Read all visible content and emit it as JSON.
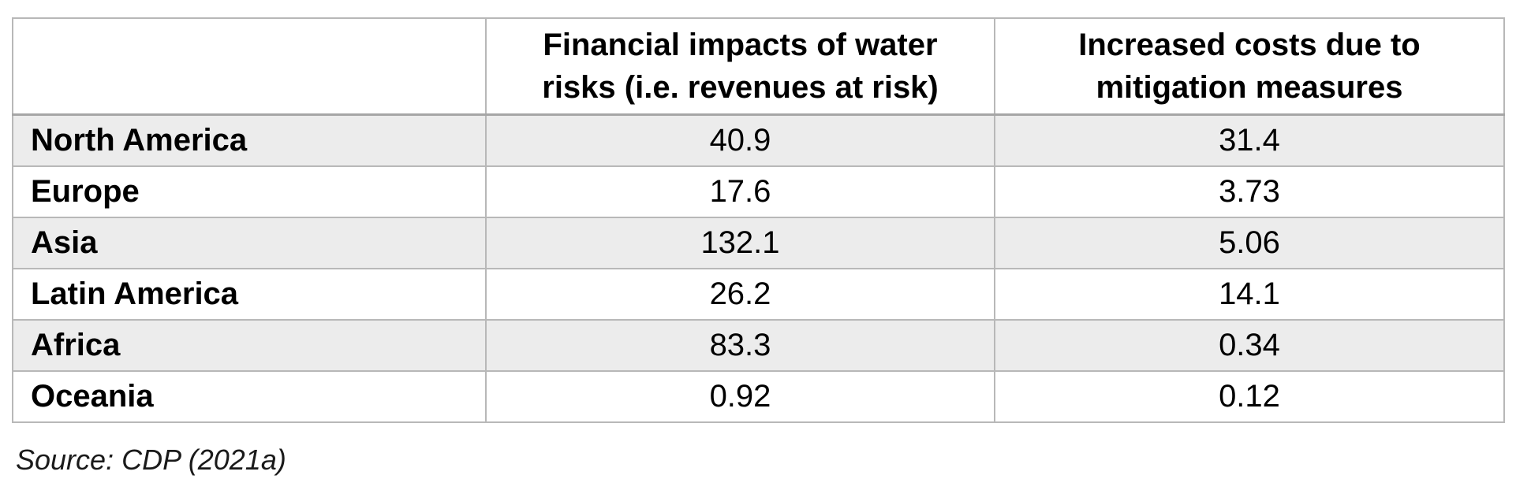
{
  "table": {
    "headers": [
      "",
      "Financial impacts of water risks (i.e. revenues at risk)",
      "Increased costs due to mitigation measures"
    ],
    "rows": [
      {
        "region": "North America",
        "financial_impact": "40.9",
        "mitigation_costs": "31.4"
      },
      {
        "region": "Europe",
        "financial_impact": "17.6",
        "mitigation_costs": "3.73"
      },
      {
        "region": "Asia",
        "financial_impact": "132.1",
        "mitigation_costs": "5.06"
      },
      {
        "region": "Latin America",
        "financial_impact": "26.2",
        "mitigation_costs": "14.1"
      },
      {
        "region": "Africa",
        "financial_impact": "83.3",
        "mitigation_costs": "0.34"
      },
      {
        "region": "Oceania",
        "financial_impact": "0.92",
        "mitigation_costs": "0.12"
      }
    ]
  },
  "source": "Source: CDP (2021a)"
}
